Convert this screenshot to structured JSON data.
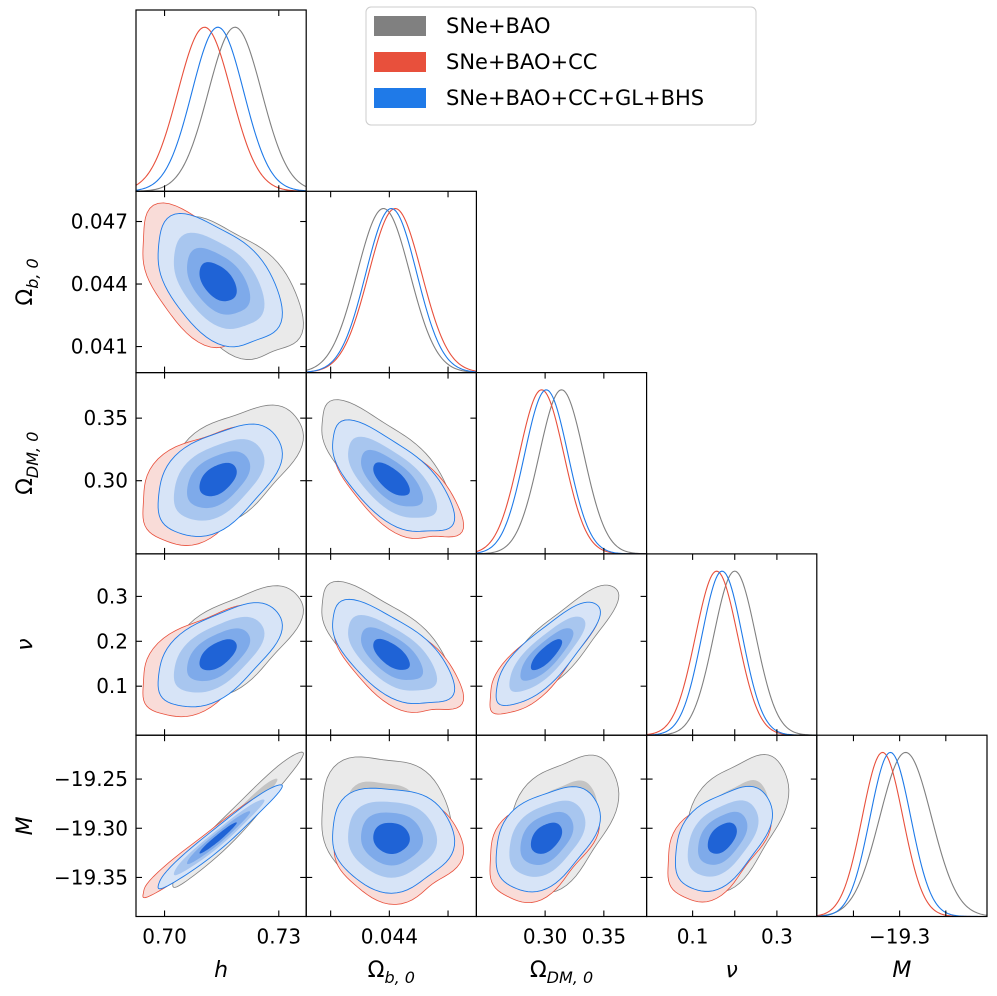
{
  "colors": {
    "grey": "#808080",
    "red": "#e8503c",
    "blue": "#1f7ae8",
    "grey_fill": [
      "#eaeaea",
      "#c4c4c4"
    ],
    "red_fill": [
      "#f9dcd8",
      "#f0a69c"
    ],
    "blue_fill": [
      "#d7e4f7",
      "#a8c6ef",
      "#7eaaea",
      "#1f63d6"
    ]
  },
  "chart_data": {
    "type": "corner",
    "legend": {
      "position": "top-right",
      "entries": [
        {
          "label": "SNe+BAO",
          "series": "grey"
        },
        {
          "label": "SNe+BAO+CC",
          "series": "red"
        },
        {
          "label": "SNe+BAO+CC+GL+BHS",
          "series": "blue"
        }
      ]
    },
    "parameters": [
      {
        "key": "h",
        "range": [
          0.6925,
          0.7372
        ],
        "ticks": [
          0.7,
          0.73
        ],
        "tick_labels": [
          "0.70",
          "0.73"
        ]
      },
      {
        "key": "Ob",
        "range": [
          0.03975,
          0.04845
        ],
        "ticks": [
          0.041,
          0.044,
          0.047
        ],
        "tick_labels": [
          "0.041",
          "0.044",
          "0.047"
        ],
        "x_tick_labels": [
          "0.044"
        ]
      },
      {
        "key": "ODM",
        "range": [
          0.2415,
          0.3864
        ],
        "ticks": [
          0.3,
          0.35
        ],
        "tick_labels": [
          "0.30",
          "0.35"
        ],
        "x_tick_labels": [
          "0.30",
          "0.35"
        ]
      },
      {
        "key": "nu",
        "range": [
          -0.0092,
          0.3947
        ],
        "ticks": [
          0.1,
          0.2,
          0.3
        ],
        "tick_labels": [
          "0.1",
          "0.2",
          "0.3"
        ],
        "x_tick_labels": [
          "0.1",
          "0.3"
        ]
      },
      {
        "key": "M",
        "range": [
          -19.3897,
          -19.2054
        ],
        "ticks": [
          -19.35,
          -19.3,
          -19.25
        ],
        "tick_labels": [
          "−19.35",
          "−19.30",
          "−19.25"
        ],
        "x_tick_labels": [
          "−19.3"
        ]
      }
    ],
    "axis_labels": {
      "h": {
        "base": "h"
      },
      "Ob": {
        "base": "Ω",
        "sub": "b, 0"
      },
      "ODM": {
        "base": "Ω",
        "sub": "DM, 0"
      },
      "nu": {
        "base": "ν"
      },
      "M": {
        "base": "M"
      }
    },
    "series": [
      {
        "name": "SNe+BAO",
        "color": "grey",
        "mean": {
          "h": 0.7185,
          "Ob": 0.0437,
          "ODM": 0.314,
          "nu": 0.2,
          "M": -19.2935
        },
        "sigma": {
          "h": 0.007,
          "Ob": 0.00135,
          "ODM": 0.019,
          "nu": 0.05,
          "M": 0.028
        }
      },
      {
        "name": "SNe+BAO+CC",
        "color": "red",
        "mean": {
          "h": 0.7105,
          "Ob": 0.0443,
          "ODM": 0.297,
          "nu": 0.157,
          "M": -19.3185
        },
        "sigma": {
          "h": 0.007,
          "Ob": 0.00135,
          "ODM": 0.019,
          "nu": 0.05,
          "M": 0.022
        }
      },
      {
        "name": "SNe+BAO+CC+GL+BHS",
        "color": "blue",
        "mean": {
          "h": 0.714,
          "Ob": 0.0441,
          "ODM": 0.301,
          "nu": 0.17,
          "M": -19.31
        },
        "sigma": {
          "h": 0.0068,
          "Ob": 0.0013,
          "ODM": 0.0185,
          "nu": 0.048,
          "M": 0.022
        }
      }
    ],
    "correlations": [
      {
        "pair": [
          "h",
          "Ob"
        ],
        "rho": -0.45
      },
      {
        "pair": [
          "h",
          "ODM"
        ],
        "rho": 0.45
      },
      {
        "pair": [
          "h",
          "nu"
        ],
        "rho": 0.55
      },
      {
        "pair": [
          "h",
          "M"
        ],
        "rho": 0.97
      },
      {
        "pair": [
          "Ob",
          "ODM"
        ],
        "rho": -0.65
      },
      {
        "pair": [
          "Ob",
          "nu"
        ],
        "rho": -0.62
      },
      {
        "pair": [
          "Ob",
          "M"
        ],
        "rho": -0.05
      },
      {
        "pair": [
          "ODM",
          "nu"
        ],
        "rho": 0.8
      },
      {
        "pair": [
          "ODM",
          "M"
        ],
        "rho": 0.4
      },
      {
        "pair": [
          "nu",
          "M"
        ],
        "rho": 0.45
      }
    ],
    "contour_levels": [
      "68%",
      "95%"
    ]
  }
}
